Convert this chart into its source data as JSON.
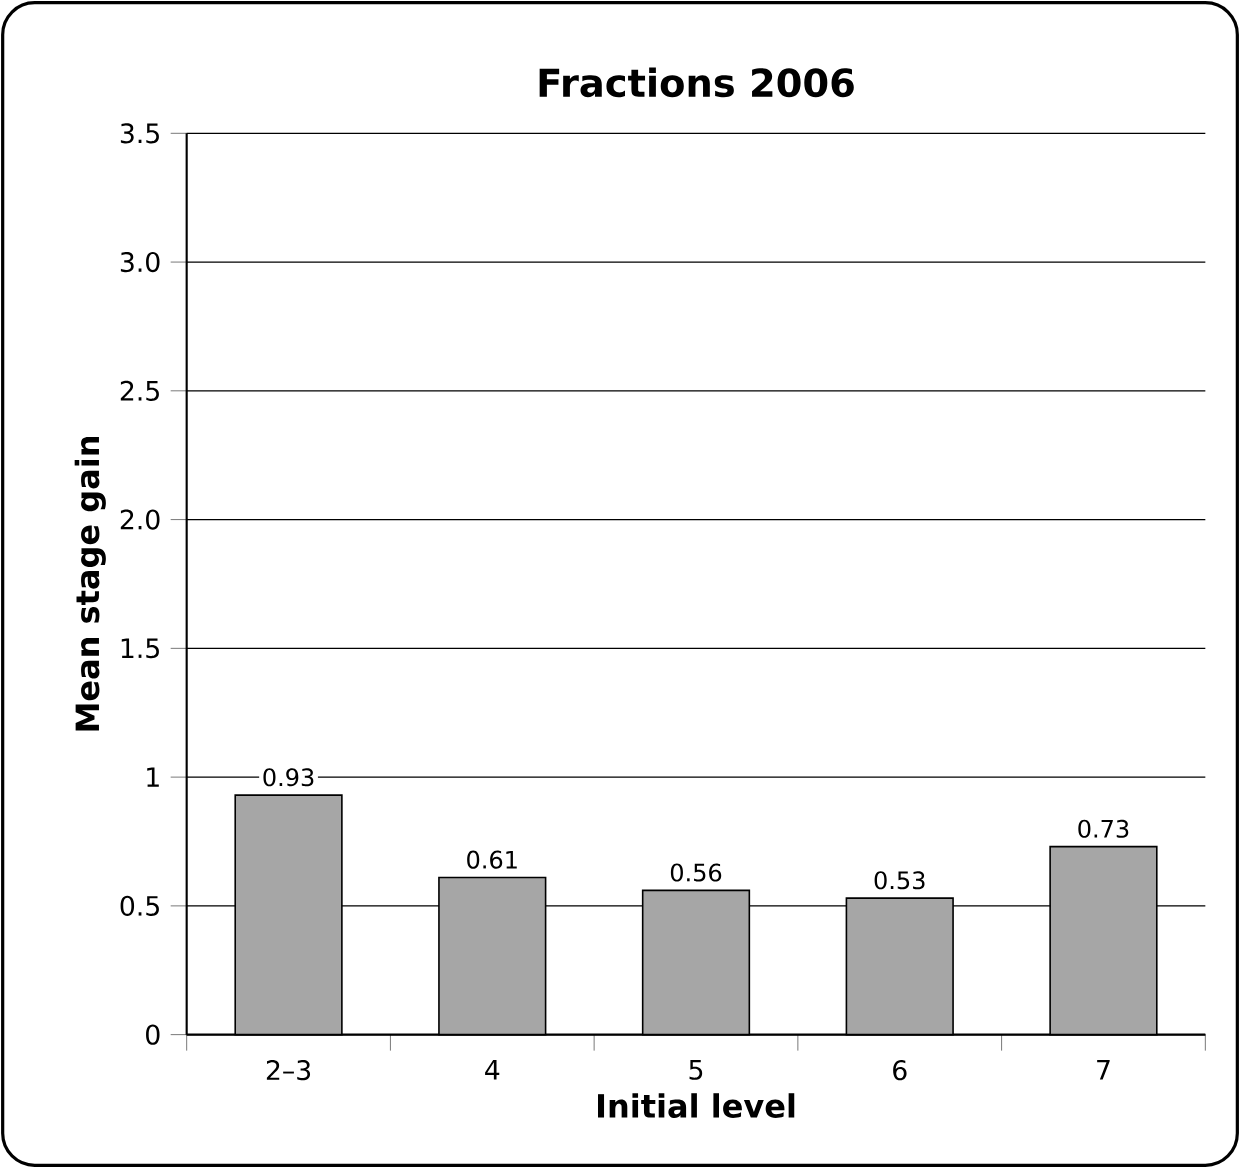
{
  "chart_data": {
    "type": "bar",
    "title": "Fractions 2006",
    "xlabel": "Initial level",
    "ylabel": "Mean stage gain",
    "categories": [
      "2–3",
      "4",
      "5",
      "6",
      "7"
    ],
    "values": [
      0.93,
      0.61,
      0.56,
      0.53,
      0.73
    ],
    "color": "#a6a6a6",
    "ylim": [
      0,
      3.5
    ],
    "yticks": [
      0,
      0.5,
      1,
      1.5,
      {
        "value": 2,
        "label": "2.0"
      },
      {
        "value": 2.5,
        "label": "2.5"
      },
      {
        "value": 3,
        "label": "3.0"
      },
      3.5
    ],
    "grid": "y",
    "data_labels": true
  }
}
